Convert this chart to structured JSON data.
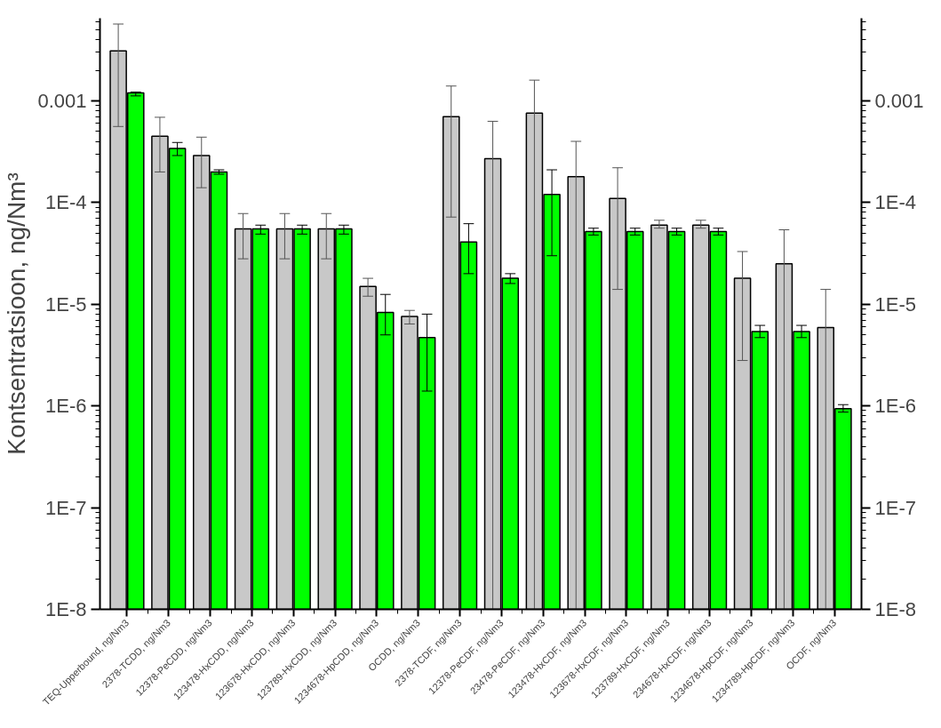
{
  "chart_data": {
    "type": "bar",
    "ylabel": "Kontsentratsioon, ng/Nm³",
    "log": "y",
    "grid": false,
    "categories": [
      "TEQ-Upperbound, ng/Nm3",
      "2378-TCDD, ng/Nm3",
      "12378-PeCDD, ng/Nm3",
      "123478-HxCDD, ng/Nm3",
      "123678-HxCDD, ng/Nm3",
      "123789-HxCDD, ng/Nm3",
      "1234678-HpCDD, ng/Nm3",
      "OCDD, ng/Nm3",
      "2378-TCDF, ng/Nm3",
      "12378-PeCDF, ng/Nm3",
      "23478-PeCDF, ng/Nm3",
      "123478-HxCDF, ng/Nm3",
      "123678-HxCDF, ng/Nm3",
      "123789-HxCDF, ng/Nm3",
      "234678-HxCDF, ng/Nm3",
      "1234678-HpCDF, ng/Nm3",
      "1234789-HpCDF, ng/Nm3",
      "OCDF, ng/Nm3"
    ],
    "series": [
      {
        "color": "#c8c8c8",
        "values": [
          0.0031,
          0.00045,
          0.00029,
          5.5e-05,
          5.5e-05,
          5.5e-05,
          1.5e-05,
          7.6e-06,
          0.0007,
          0.00027,
          0.00076,
          0.00018,
          0.00011,
          6e-05,
          6e-05,
          1.8e-05,
          2.5e-05,
          5.9e-06
        ],
        "errors": [
          [
            0.00056,
            0.0057
          ],
          [
            0.0002,
            0.00069
          ],
          [
            0.00014,
            0.00044
          ],
          [
            2.8e-05,
            7.8e-05
          ],
          [
            2.8e-05,
            7.8e-05
          ],
          [
            2.8e-05,
            7.8e-05
          ],
          [
            1.2e-05,
            1.8e-05
          ],
          [
            6.4e-06,
            8.7e-06
          ],
          [
            7.2e-05,
            0.0014
          ],
          [
            1e-08,
            0.00063
          ],
          [
            1e-08,
            0.0016
          ],
          [
            1e-08,
            0.0004
          ],
          [
            1.4e-05,
            0.00022
          ],
          [
            5.6e-05,
            6.7e-05
          ],
          [
            5.6e-05,
            6.7e-05
          ],
          [
            2.8e-06,
            3.3e-05
          ],
          [
            1e-08,
            5.4e-05
          ],
          [
            1e-08,
            1.4e-05
          ]
        ]
      },
      {
        "color": "#00ff00",
        "values": [
          0.0012,
          0.00034,
          0.0002,
          5.5e-05,
          5.5e-05,
          5.5e-05,
          8.3e-06,
          4.7e-06,
          4.1e-05,
          1.8e-05,
          0.00012,
          5.2e-05,
          5.2e-05,
          5.2e-05,
          5.2e-05,
          5.4e-06,
          5.4e-06,
          9.4e-07
        ],
        "errors": [
          [
            0.00112,
            0.00122
          ],
          [
            0.00029,
            0.00039
          ],
          [
            0.00019,
            0.00021
          ],
          [
            4.9e-05,
            6e-05
          ],
          [
            4.9e-05,
            6e-05
          ],
          [
            4.9e-05,
            6e-05
          ],
          [
            5e-06,
            1.25e-05
          ],
          [
            1.4e-06,
            8e-06
          ],
          [
            2e-05,
            6.2e-05
          ],
          [
            1.6e-05,
            2e-05
          ],
          [
            3e-05,
            0.00021
          ],
          [
            4.8e-05,
            5.6e-05
          ],
          [
            4.8e-05,
            5.6e-05
          ],
          [
            4.8e-05,
            5.6e-05
          ],
          [
            4.8e-05,
            5.6e-05
          ],
          [
            4.7e-06,
            6.2e-06
          ],
          [
            4.7e-06,
            6.2e-06
          ],
          [
            8.7e-07,
            1.03e-06
          ]
        ]
      }
    ],
    "ylim": [
      1e-08,
      0.0065
    ],
    "yticks": [
      {
        "value": 1e-08,
        "label": "1E-8"
      },
      {
        "value": 1e-07,
        "label": "1E-7"
      },
      {
        "value": 1e-06,
        "label": "1E-6"
      },
      {
        "value": 1e-05,
        "label": "1E-5"
      },
      {
        "value": 0.0001,
        "label": "1E-4"
      },
      {
        "value": 0.001,
        "label": "0.001"
      }
    ]
  }
}
